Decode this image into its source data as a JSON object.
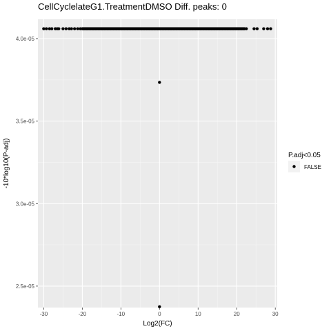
{
  "chart_data": {
    "type": "scatter",
    "title": "CellCyclelateG1.TreatmentDMSO Diff. peaks: 0",
    "xlabel": "Log2(FC)",
    "ylabel": "-10*log10(P-adj)",
    "xlim": [
      -31.5,
      30.5
    ],
    "ylim": [
      2.37e-05,
      4.117e-05
    ],
    "x_ticks": [
      -30,
      -20,
      -10,
      0,
      10,
      20,
      30
    ],
    "x_tick_labels": [
      "-30",
      "-20",
      "-10",
      "0",
      "10",
      "20",
      "30"
    ],
    "y_ticks": [
      2.5e-05,
      3e-05,
      3.5e-05,
      4e-05
    ],
    "y_tick_labels": [
      "2.5e-05",
      "3.0e-05",
      "3.5e-05",
      "4.0e-05"
    ],
    "grid": true,
    "legend": {
      "title": "P.adj<0.05",
      "position": "right",
      "entries": [
        {
          "label": "FALSE",
          "color": "#000000"
        }
      ]
    },
    "series": [
      {
        "name": "FALSE",
        "color": "#000000",
        "x": [
          -30.0,
          -29.3,
          -28.5,
          -27.9,
          -27.0,
          -26.5,
          -26.1,
          -25.0,
          -24.2,
          -23.4,
          -22.8,
          -22.0,
          -21.2,
          -20.5,
          -19.6,
          -18.8,
          -18.0,
          -17.2,
          -16.5,
          -15.7,
          -14.9,
          -14.2,
          -13.4,
          -12.7,
          -11.9,
          -11.2,
          -10.5,
          -9.8,
          -9.1,
          -8.3,
          -7.6,
          -6.9,
          -6.2,
          -5.4,
          -4.7,
          -4.0,
          -3.3,
          -2.6,
          -1.9,
          -1.2,
          -0.5,
          0.2,
          0.9,
          1.6,
          2.3,
          3.0,
          3.7,
          4.4,
          5.1,
          5.8,
          6.5,
          7.2,
          7.9,
          8.6,
          9.3,
          10.0,
          10.7,
          11.4,
          12.1,
          12.8,
          13.5,
          14.2,
          14.9,
          15.6,
          16.3,
          17.0,
          17.7,
          18.4,
          19.1,
          19.8,
          20.5,
          21.2,
          21.9,
          22.5,
          24.5,
          25.3,
          27.0,
          28.0,
          28.8,
          0.0,
          0.0
        ],
        "y": [
          4.06e-05,
          4.06e-05,
          4.06e-05,
          4.06e-05,
          4.06e-05,
          4.06e-05,
          4.06e-05,
          4.06e-05,
          4.06e-05,
          4.06e-05,
          4.06e-05,
          4.06e-05,
          4.06e-05,
          4.06e-05,
          4.06e-05,
          4.06e-05,
          4.06e-05,
          4.06e-05,
          4.06e-05,
          4.06e-05,
          4.06e-05,
          4.06e-05,
          4.06e-05,
          4.06e-05,
          4.06e-05,
          4.06e-05,
          4.06e-05,
          4.06e-05,
          4.06e-05,
          4.06e-05,
          4.06e-05,
          4.06e-05,
          4.06e-05,
          4.06e-05,
          4.06e-05,
          4.06e-05,
          4.06e-05,
          4.06e-05,
          4.06e-05,
          4.06e-05,
          4.06e-05,
          4.06e-05,
          4.06e-05,
          4.06e-05,
          4.06e-05,
          4.06e-05,
          4.06e-05,
          4.06e-05,
          4.06e-05,
          4.06e-05,
          4.06e-05,
          4.06e-05,
          4.06e-05,
          4.06e-05,
          4.06e-05,
          4.06e-05,
          4.06e-05,
          4.06e-05,
          4.06e-05,
          4.06e-05,
          4.06e-05,
          4.06e-05,
          4.06e-05,
          4.06e-05,
          4.06e-05,
          4.06e-05,
          4.06e-05,
          4.06e-05,
          4.06e-05,
          4.06e-05,
          4.06e-05,
          4.06e-05,
          4.06e-05,
          4.06e-05,
          4.06e-05,
          4.06e-05,
          4.06e-05,
          4.06e-05,
          4.06e-05,
          3.735e-05,
          2.375e-05
        ]
      }
    ],
    "dense_band": {
      "x_range": [
        -20,
        22
      ],
      "y": 4.06e-05,
      "color": "#000000"
    }
  },
  "colors": {
    "panel_background": "#ebebeb",
    "grid_major": "#ffffff",
    "point": "#000000",
    "tick_text": "#4d4d4d"
  }
}
